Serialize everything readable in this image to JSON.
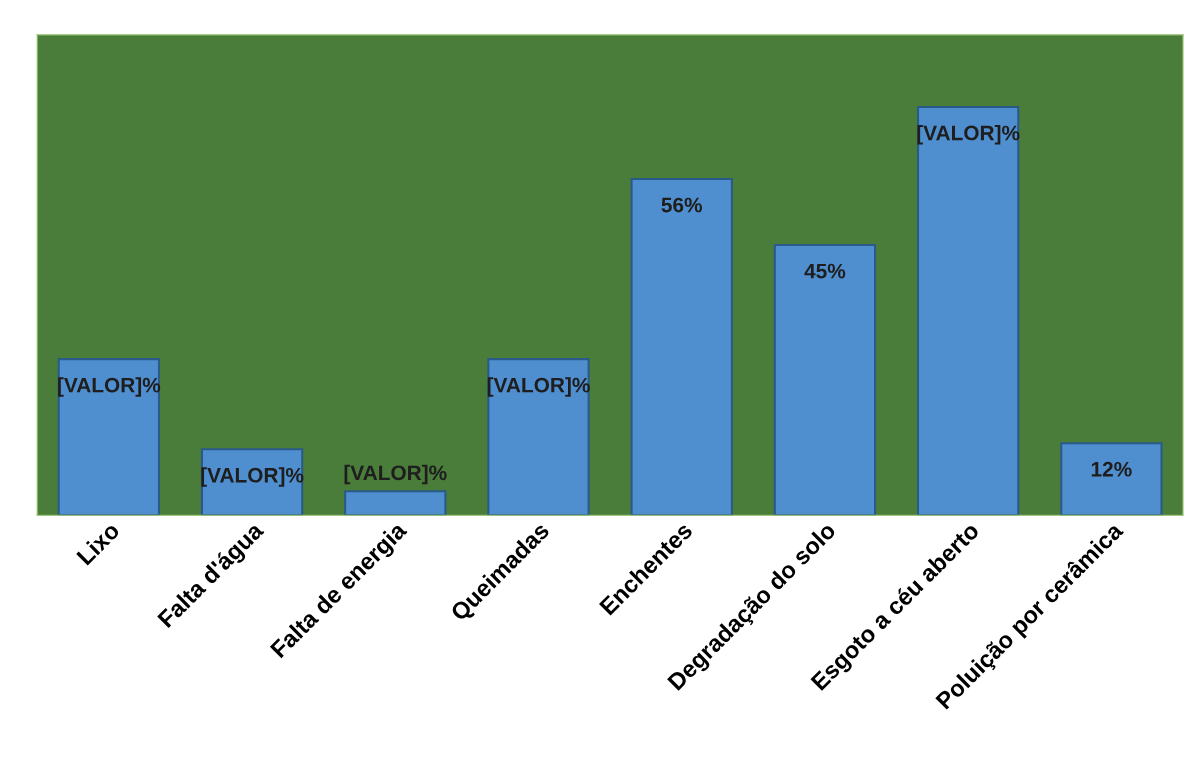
{
  "chart_data": {
    "type": "bar",
    "categories": [
      "Lixo",
      "Falta d'água",
      "Falta de energia",
      "Queimadas",
      "Enchentes",
      "Degradação do solo",
      "Esgoto a céu aberto",
      "Poluição por cerâmica"
    ],
    "values": [
      26,
      11,
      4,
      26,
      56,
      45,
      68,
      12
    ],
    "value_labels": [
      "[VALOR]%",
      "[VALOR]%",
      "[VALOR]%",
      "[VALOR]%",
      "56%",
      "45%",
      "[VALOR]%",
      "12%"
    ],
    "color": "#4f8fcf",
    "ylim": [
      0,
      80
    ],
    "tick_labels": "x",
    "grid": false,
    "legend": false
  }
}
